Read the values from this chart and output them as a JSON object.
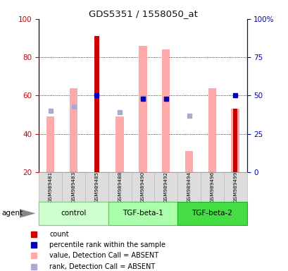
{
  "title": "GDS5351 / 1558050_at",
  "samples": [
    "GSM989481",
    "GSM989483",
    "GSM989485",
    "GSM989488",
    "GSM989490",
    "GSM989492",
    "GSM989494",
    "GSM989496",
    "GSM989499"
  ],
  "pink_bar_values": [
    49,
    64,
    null,
    49,
    86,
    84,
    31,
    64,
    53
  ],
  "red_bar_values": [
    null,
    null,
    91,
    null,
    null,
    null,
    null,
    null,
    53
  ],
  "blue_dot_values": [
    null,
    null,
    50,
    null,
    48,
    48,
    null,
    null,
    50
  ],
  "lavender_dot_values": [
    40,
    43,
    null,
    39,
    49,
    48,
    37,
    null,
    null
  ],
  "ylim_left": [
    20,
    100
  ],
  "ylim_right": [
    0,
    100
  ],
  "yticks_left": [
    20,
    40,
    60,
    80,
    100
  ],
  "ytick_labels_right": [
    "0",
    "25",
    "50",
    "75",
    "100%"
  ],
  "color_red": "#cc0000",
  "color_pink": "#ffaaaa",
  "color_blue": "#0000bb",
  "color_lavender": "#aaaacc",
  "bar_width": 0.35,
  "groups": [
    {
      "label": "control",
      "start": 0,
      "end": 2,
      "facecolor": "#ccffcc",
      "edgecolor": "#88cc88"
    },
    {
      "label": "TGF-beta-1",
      "start": 3,
      "end": 5,
      "facecolor": "#aaffaa",
      "edgecolor": "#66bb66"
    },
    {
      "label": "TGF-beta-2",
      "start": 6,
      "end": 8,
      "facecolor": "#44dd44",
      "edgecolor": "#22aa22"
    }
  ],
  "legend_items": [
    {
      "color": "#cc0000",
      "label": "count"
    },
    {
      "color": "#0000bb",
      "label": "percentile rank within the sample"
    },
    {
      "color": "#ffaaaa",
      "label": "value, Detection Call = ABSENT"
    },
    {
      "color": "#aaaacc",
      "label": "rank, Detection Call = ABSENT"
    }
  ]
}
